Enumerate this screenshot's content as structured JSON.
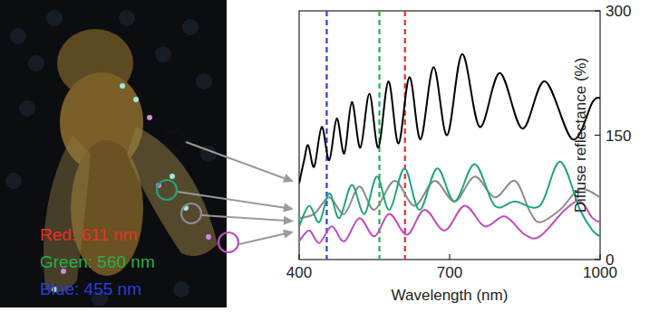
{
  "photo": {
    "labels": [
      {
        "text": "Red: 611 nm",
        "color": "#e8302a"
      },
      {
        "text": "Green: 560 nm",
        "color": "#22b24c"
      },
      {
        "text": "Blue: 455 nm",
        "color": "#2b3fd6"
      }
    ]
  },
  "chart_data": {
    "type": "line",
    "xlabel": "Wavelength (nm)",
    "ylabel": "Diffuse reflectance (%)",
    "xlim": [
      400,
      1000
    ],
    "xticks": [
      400,
      700,
      1000
    ],
    "ylim": [
      0,
      300
    ],
    "yticks": [
      0,
      150,
      300
    ],
    "grid": false,
    "reference_lines": [
      {
        "x": 455,
        "color": "#2b3fd6",
        "line_style": "dashed"
      },
      {
        "x": 560,
        "color": "#22b24c",
        "line_style": "dashed"
      },
      {
        "x": 611,
        "color": "#e8302a",
        "line_style": "dashed"
      }
    ],
    "series": [
      {
        "color": "#000000",
        "x": [
          400,
          410,
          418,
          430,
          445,
          460,
          475,
          490,
          505,
          522,
          540,
          558,
          578,
          598,
          620,
          642,
          668,
          695,
          725,
          760,
          800,
          845,
          890,
          945,
          985,
          1000
        ],
        "values": [
          92,
          120,
          138,
          112,
          160,
          120,
          170,
          128,
          190,
          135,
          200,
          135,
          215,
          140,
          220,
          145,
          232,
          150,
          248,
          160,
          225,
          158,
          215,
          145,
          190,
          195
        ]
      },
      {
        "color": "#1fa57c",
        "x": [
          400,
          420,
          440,
          460,
          480,
          505,
          530,
          555,
          580,
          610,
          640,
          675,
          710,
          750,
          790,
          830,
          880,
          920,
          960,
          985,
          1000
        ],
        "values": [
          40,
          65,
          45,
          80,
          50,
          90,
          55,
          100,
          60,
          110,
          60,
          110,
          70,
          115,
          65,
          70,
          65,
          118,
          60,
          35,
          28
        ]
      },
      {
        "color": "#8c8c8c",
        "x": [
          400,
          430,
          460,
          490,
          520,
          550,
          590,
          630,
          670,
          710,
          750,
          790,
          830,
          860,
          880,
          920,
          960,
          1000
        ],
        "values": [
          50,
          55,
          75,
          55,
          88,
          60,
          95,
          65,
          95,
          70,
          100,
          75,
          95,
          58,
          45,
          60,
          85,
          75
        ]
      },
      {
        "color": "#c04cc0",
        "x": [
          400,
          420,
          440,
          465,
          490,
          520,
          550,
          580,
          615,
          650,
          690,
          730,
          770,
          810,
          850,
          880,
          930,
          960,
          985,
          1000
        ],
        "values": [
          22,
          35,
          20,
          40,
          22,
          50,
          28,
          55,
          30,
          60,
          35,
          65,
          40,
          52,
          30,
          28,
          60,
          70,
          50,
          45
        ]
      }
    ]
  }
}
